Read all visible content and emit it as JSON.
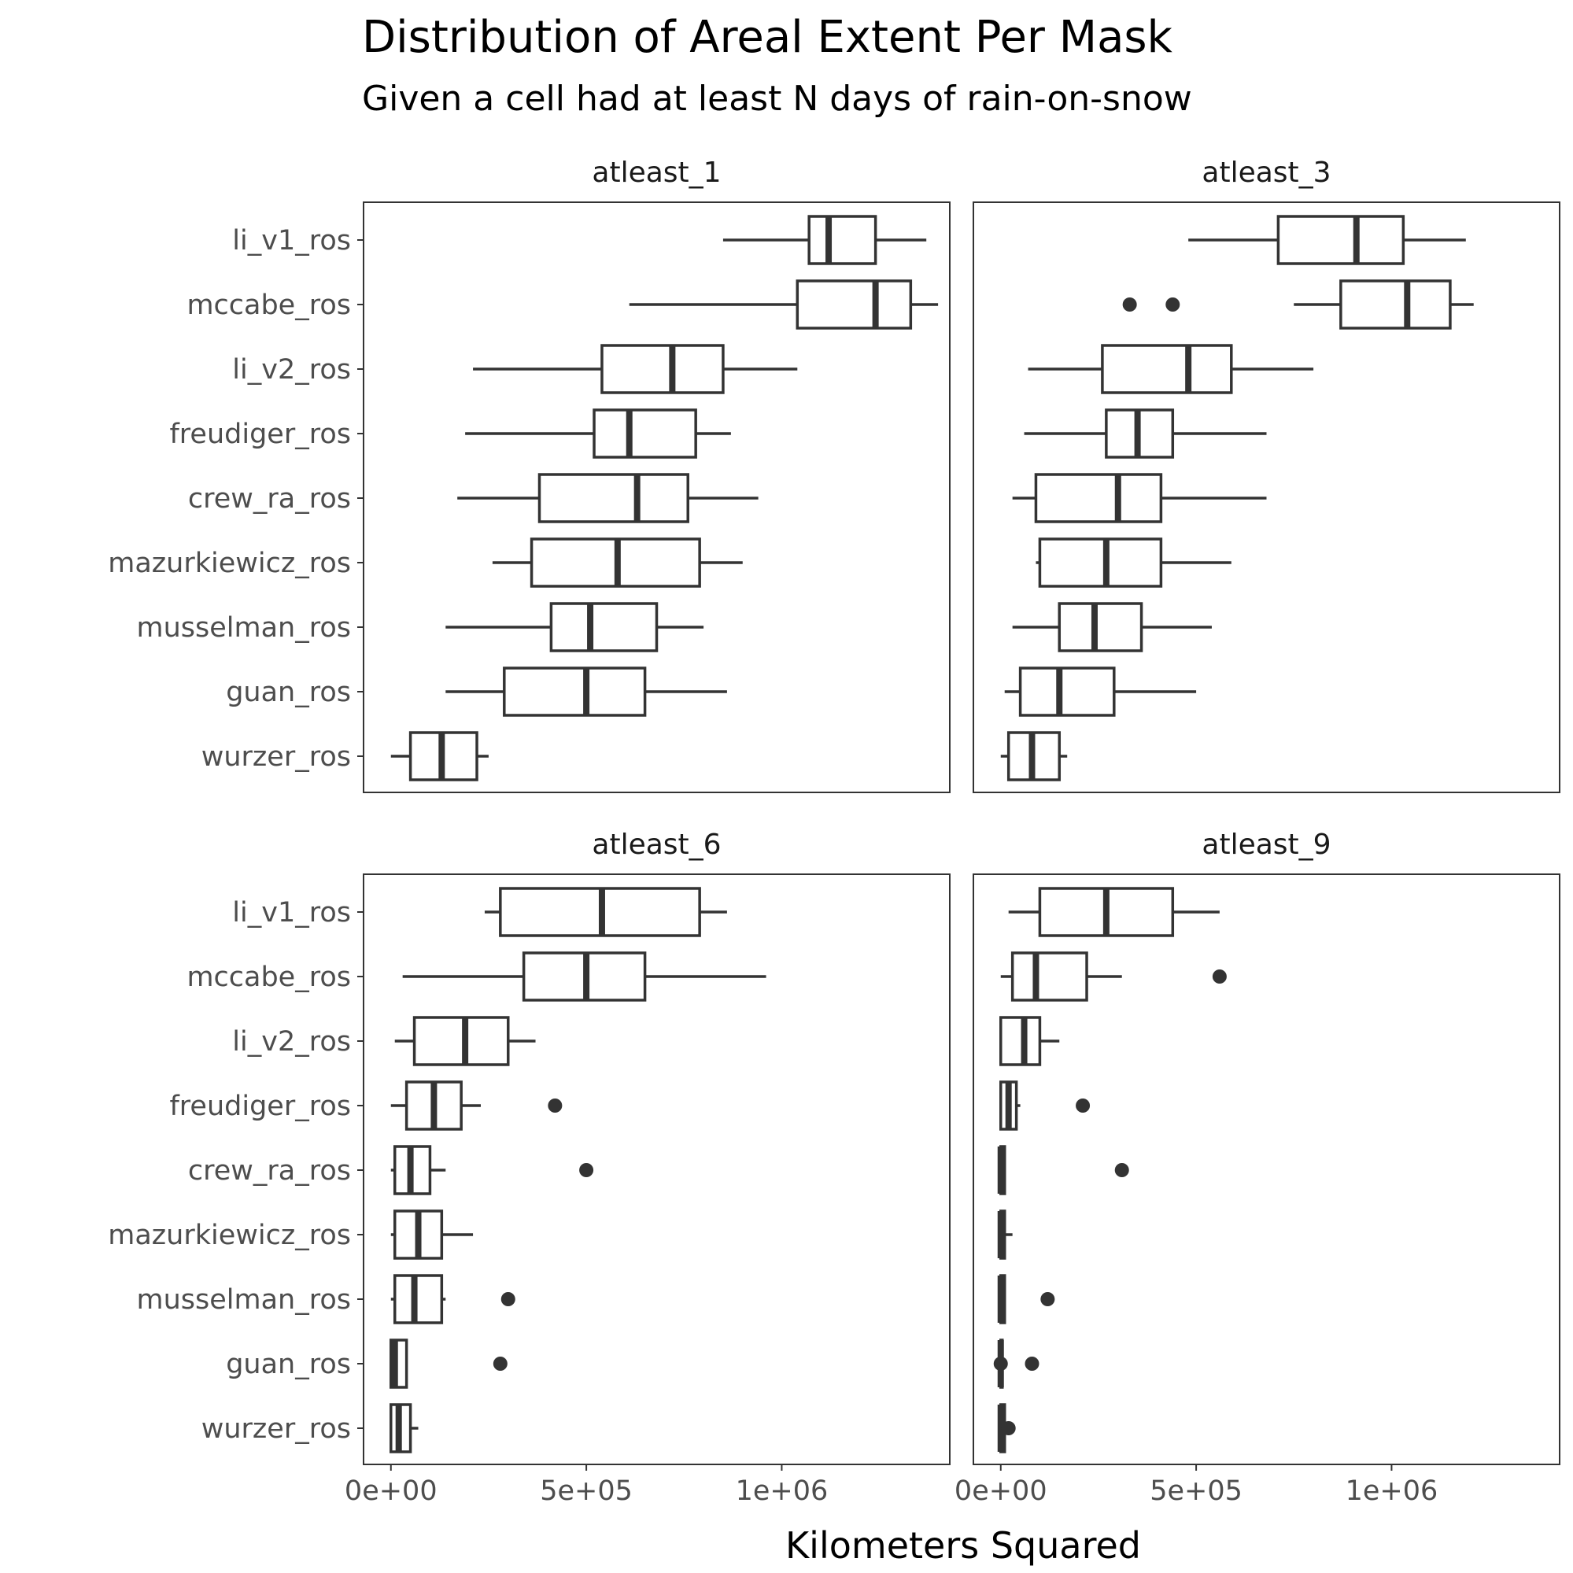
{
  "chart_data": {
    "type": "boxplot",
    "title": "Distribution of Areal Extent Per Mask",
    "subtitle": "Given a cell had at least N days of rain-on-snow",
    "xlabel": "Kilometers Squared",
    "xlim": [
      -70000,
      1430000
    ],
    "x_ticks": [
      0,
      500000,
      1000000
    ],
    "x_tick_labels": [
      "0e+00",
      "5e+05",
      "1e+06"
    ],
    "categories": [
      "li_v1_ros",
      "mccabe_ros",
      "li_v2_ros",
      "freudiger_ros",
      "crew_ra_ros",
      "mazurkiewicz_ros",
      "musselman_ros",
      "guan_ros",
      "wurzer_ros"
    ],
    "colors": {
      "box_stroke": "#333333",
      "box_fill": "#ffffff",
      "panel_border": "#333333"
    },
    "panels": [
      {
        "name": "atleast_1",
        "boxes": [
          {
            "category": "li_v1_ros",
            "min": 850000,
            "q1": 1070000,
            "median": 1120000,
            "q3": 1240000,
            "max": 1370000,
            "outliers": []
          },
          {
            "category": "mccabe_ros",
            "min": 610000,
            "q1": 1040000,
            "median": 1240000,
            "q3": 1330000,
            "max": 1400000,
            "outliers": []
          },
          {
            "category": "li_v2_ros",
            "min": 210000,
            "q1": 540000,
            "median": 720000,
            "q3": 850000,
            "max": 1040000,
            "outliers": []
          },
          {
            "category": "freudiger_ros",
            "min": 190000,
            "q1": 520000,
            "median": 610000,
            "q3": 780000,
            "max": 870000,
            "outliers": []
          },
          {
            "category": "crew_ra_ros",
            "min": 170000,
            "q1": 380000,
            "median": 630000,
            "q3": 760000,
            "max": 940000,
            "outliers": []
          },
          {
            "category": "mazurkiewicz_ros",
            "min": 260000,
            "q1": 360000,
            "median": 580000,
            "q3": 790000,
            "max": 900000,
            "outliers": []
          },
          {
            "category": "musselman_ros",
            "min": 140000,
            "q1": 410000,
            "median": 510000,
            "q3": 680000,
            "max": 800000,
            "outliers": []
          },
          {
            "category": "guan_ros",
            "min": 140000,
            "q1": 290000,
            "median": 500000,
            "q3": 650000,
            "max": 860000,
            "outliers": []
          },
          {
            "category": "wurzer_ros",
            "min": 0,
            "q1": 50000,
            "median": 130000,
            "q3": 220000,
            "max": 250000,
            "outliers": []
          }
        ]
      },
      {
        "name": "atleast_3",
        "boxes": [
          {
            "category": "li_v1_ros",
            "min": 480000,
            "q1": 710000,
            "median": 910000,
            "q3": 1030000,
            "max": 1190000,
            "outliers": []
          },
          {
            "category": "mccabe_ros",
            "min": 750000,
            "q1": 870000,
            "median": 1040000,
            "q3": 1150000,
            "max": 1210000,
            "outliers": [
              330000,
              440000
            ]
          },
          {
            "category": "li_v2_ros",
            "min": 70000,
            "q1": 260000,
            "median": 480000,
            "q3": 590000,
            "max": 800000,
            "outliers": []
          },
          {
            "category": "freudiger_ros",
            "min": 60000,
            "q1": 270000,
            "median": 350000,
            "q3": 440000,
            "max": 680000,
            "outliers": []
          },
          {
            "category": "crew_ra_ros",
            "min": 30000,
            "q1": 90000,
            "median": 300000,
            "q3": 410000,
            "max": 680000,
            "outliers": []
          },
          {
            "category": "mazurkiewicz_ros",
            "min": 90000,
            "q1": 100000,
            "median": 270000,
            "q3": 410000,
            "max": 590000,
            "outliers": []
          },
          {
            "category": "musselman_ros",
            "min": 30000,
            "q1": 150000,
            "median": 240000,
            "q3": 360000,
            "max": 540000,
            "outliers": []
          },
          {
            "category": "guan_ros",
            "min": 10000,
            "q1": 50000,
            "median": 150000,
            "q3": 290000,
            "max": 500000,
            "outliers": []
          },
          {
            "category": "wurzer_ros",
            "min": 0,
            "q1": 20000,
            "median": 80000,
            "q3": 150000,
            "max": 170000,
            "outliers": []
          }
        ]
      },
      {
        "name": "atleast_6",
        "boxes": [
          {
            "category": "li_v1_ros",
            "min": 240000,
            "q1": 280000,
            "median": 540000,
            "q3": 790000,
            "max": 860000,
            "outliers": []
          },
          {
            "category": "mccabe_ros",
            "min": 30000,
            "q1": 340000,
            "median": 500000,
            "q3": 650000,
            "max": 960000,
            "outliers": []
          },
          {
            "category": "li_v2_ros",
            "min": 10000,
            "q1": 60000,
            "median": 190000,
            "q3": 300000,
            "max": 370000,
            "outliers": []
          },
          {
            "category": "freudiger_ros",
            "min": 0,
            "q1": 40000,
            "median": 110000,
            "q3": 180000,
            "max": 230000,
            "outliers": [
              420000
            ]
          },
          {
            "category": "crew_ra_ros",
            "min": 0,
            "q1": 10000,
            "median": 50000,
            "q3": 100000,
            "max": 140000,
            "outliers": [
              500000
            ]
          },
          {
            "category": "mazurkiewicz_ros",
            "min": 0,
            "q1": 10000,
            "median": 70000,
            "q3": 130000,
            "max": 210000,
            "outliers": []
          },
          {
            "category": "musselman_ros",
            "min": 0,
            "q1": 10000,
            "median": 60000,
            "q3": 130000,
            "max": 140000,
            "outliers": [
              300000
            ]
          },
          {
            "category": "guan_ros",
            "min": 0,
            "q1": 0,
            "median": 10000,
            "q3": 40000,
            "max": 40000,
            "outliers": [
              280000
            ]
          },
          {
            "category": "wurzer_ros",
            "min": 0,
            "q1": 0,
            "median": 20000,
            "q3": 50000,
            "max": 70000,
            "outliers": []
          }
        ]
      },
      {
        "name": "atleast_9",
        "boxes": [
          {
            "category": "li_v1_ros",
            "min": 20000,
            "q1": 100000,
            "median": 270000,
            "q3": 440000,
            "max": 560000,
            "outliers": []
          },
          {
            "category": "mccabe_ros",
            "min": 0,
            "q1": 30000,
            "median": 90000,
            "q3": 220000,
            "max": 310000,
            "outliers": [
              560000
            ]
          },
          {
            "category": "li_v2_ros",
            "min": 0,
            "q1": 0,
            "median": 60000,
            "q3": 100000,
            "max": 150000,
            "outliers": []
          },
          {
            "category": "freudiger_ros",
            "min": 0,
            "q1": 0,
            "median": 20000,
            "q3": 40000,
            "max": 50000,
            "outliers": [
              210000
            ]
          },
          {
            "category": "crew_ra_ros",
            "min": 0,
            "q1": 0,
            "median": 0,
            "q3": 10000,
            "max": 10000,
            "outliers": [
              310000
            ]
          },
          {
            "category": "mazurkiewicz_ros",
            "min": 0,
            "q1": 0,
            "median": 0,
            "q3": 10000,
            "max": 30000,
            "outliers": []
          },
          {
            "category": "musselman_ros",
            "min": 0,
            "q1": 0,
            "median": 0,
            "q3": 10000,
            "max": 10000,
            "outliers": [
              120000
            ]
          },
          {
            "category": "guan_ros",
            "min": 0,
            "q1": 0,
            "median": 0,
            "q3": 0,
            "max": 0,
            "outliers": [
              0,
              80000
            ]
          },
          {
            "category": "wurzer_ros",
            "min": 0,
            "q1": 0,
            "median": 0,
            "q3": 10000,
            "max": 10000,
            "outliers": [
              20000
            ]
          }
        ]
      }
    ]
  }
}
